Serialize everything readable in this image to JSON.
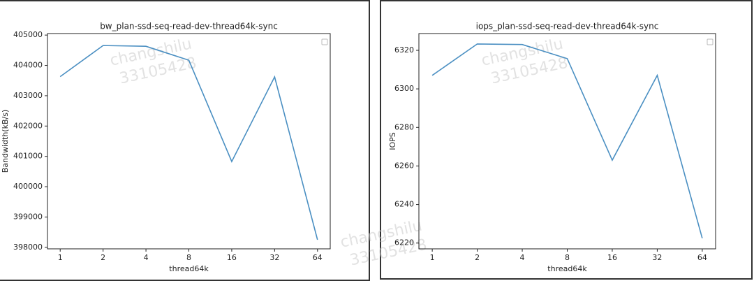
{
  "chart_data": [
    {
      "type": "line",
      "title": "bw_plan-ssd-seq-read-dev-thread64k-sync",
      "x_label": "thread64k",
      "y_label": "Bandwidth(kB/s)",
      "categories": [
        "1",
        "2",
        "4",
        "8",
        "16",
        "32",
        "64"
      ],
      "values": [
        403630,
        404655,
        404630,
        404170,
        400830,
        403620,
        398250
      ],
      "color": "#4a8fc2",
      "ylim": [
        397950,
        405050
      ],
      "yticks": [
        398000,
        399000,
        400000,
        401000,
        402000,
        403000,
        404000,
        405000
      ],
      "watermarks": [
        "changshilu",
        "33105428"
      ]
    },
    {
      "type": "line",
      "title": "iops_plan-ssd-seq-read-dev-thread64k-sync",
      "x_label": "thread64k",
      "y_label": "IOPS",
      "categories": [
        "1",
        "2",
        "4",
        "8",
        "16",
        "32",
        "64"
      ],
      "values": [
        6307,
        6323.3,
        6323,
        6315.7,
        6263,
        6307,
        6222.5
      ],
      "color": "#4a8fc2",
      "ylim": [
        6217,
        6328.7
      ],
      "yticks": [
        6220,
        6240,
        6260,
        6280,
        6300,
        6320
      ],
      "watermarks": [
        "changshilu",
        "33105428"
      ]
    }
  ]
}
